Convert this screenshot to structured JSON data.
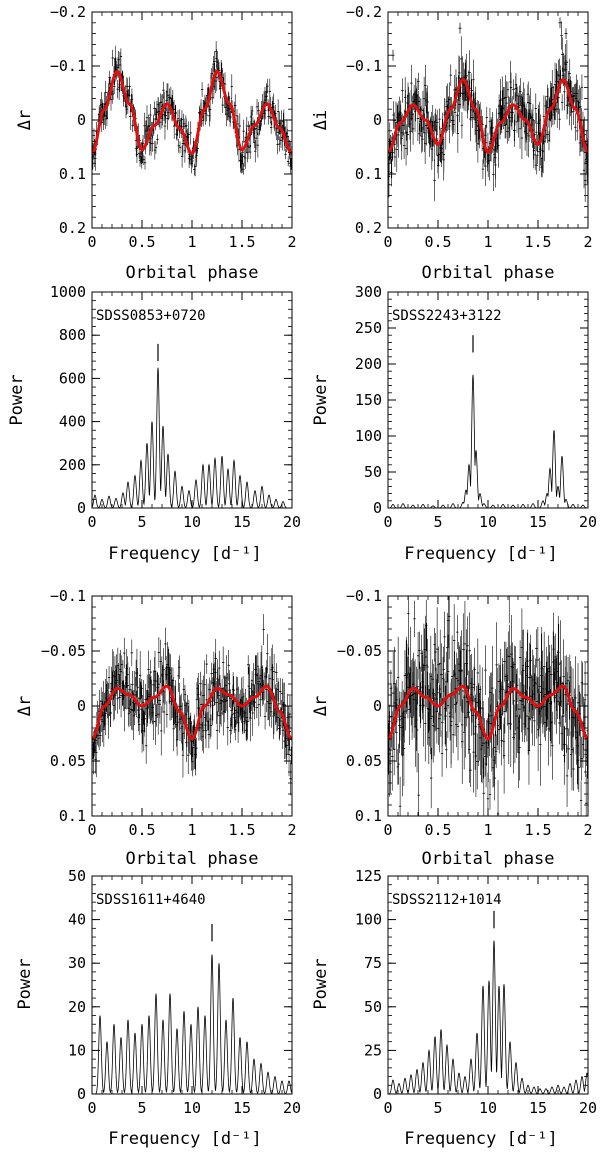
{
  "figure": {
    "background": "#ffffff",
    "model_color": "#e01010",
    "data_color": "#000000"
  },
  "chart_data": [
    {
      "id": "lc-sdss0853",
      "type": "scatter",
      "title": "",
      "xlabel": "Orbital phase",
      "ylabel": "Δr",
      "xlim": [
        0,
        2
      ],
      "ylim": [
        0.2,
        -0.2
      ],
      "y_inverted": true,
      "x_ticks": [
        0,
        0.5,
        1,
        1.5,
        2
      ],
      "x_tick_labels": [
        "0",
        "0.5",
        "1",
        "1.5",
        "2"
      ],
      "y_ticks": [
        -0.2,
        -0.1,
        0,
        0.1,
        0.2
      ],
      "y_tick_labels": [
        "−0.2",
        "−0.1",
        "0",
        "0.1",
        "0.2"
      ],
      "model": {
        "x": [
          0,
          0.125,
          0.25,
          0.375,
          0.5,
          0.625,
          0.75,
          0.875,
          1.0,
          1.125,
          1.25,
          1.375,
          1.5,
          1.625,
          1.75,
          1.875,
          2.0
        ],
        "y": [
          0.062,
          -0.02,
          -0.09,
          -0.03,
          0.055,
          0.01,
          -0.03,
          0.015,
          0.062,
          -0.02,
          -0.09,
          -0.03,
          0.055,
          0.01,
          -0.03,
          0.015,
          0.062
        ]
      },
      "scatter_amplitude": 0.018,
      "legend": null
    },
    {
      "id": "lc-sdss2243",
      "type": "scatter",
      "title": "",
      "xlabel": "Orbital phase",
      "ylabel": "Δi",
      "xlim": [
        0,
        2
      ],
      "ylim": [
        0.2,
        -0.2
      ],
      "y_inverted": true,
      "x_ticks": [
        0,
        0.5,
        1,
        1.5,
        2
      ],
      "x_tick_labels": [
        "0",
        "0.5",
        "1",
        "1.5",
        "2"
      ],
      "y_ticks": [
        -0.2,
        -0.1,
        0,
        0.1,
        0.2
      ],
      "y_tick_labels": [
        "−0.2",
        "−0.1",
        "0",
        "0.1",
        "0.2"
      ],
      "model": {
        "x": [
          0,
          0.125,
          0.25,
          0.375,
          0.5,
          0.625,
          0.75,
          0.875,
          1.0,
          1.125,
          1.25,
          1.375,
          1.5,
          1.625,
          1.75,
          1.875,
          2.0
        ],
        "y": [
          0.06,
          0.005,
          -0.028,
          0.0,
          0.045,
          -0.02,
          -0.075,
          -0.02,
          0.06,
          0.005,
          -0.028,
          0.0,
          0.045,
          -0.02,
          -0.075,
          -0.02,
          0.06
        ]
      },
      "scatter_amplitude": 0.03,
      "outliers": [
        {
          "x": 0.72,
          "y": -0.17
        },
        {
          "x": 1.72,
          "y": -0.18
        },
        {
          "x": 1.78,
          "y": -0.16
        },
        {
          "x": 0.05,
          "y": -0.12
        }
      ],
      "legend": null
    },
    {
      "id": "ps-sdss0853",
      "type": "line",
      "title": "SDSS0853+0720",
      "xlabel": "Frequency [d⁻¹]",
      "ylabel": "Power",
      "xlim": [
        0,
        20
      ],
      "ylim": [
        0,
        1000
      ],
      "x_ticks": [
        0,
        5,
        10,
        15,
        20
      ],
      "x_tick_labels": [
        "0",
        "5",
        "10",
        "15",
        "20"
      ],
      "y_ticks": [
        0,
        200,
        400,
        600,
        800,
        1000
      ],
      "y_tick_labels": [
        "0",
        "200",
        "400",
        "600",
        "800",
        "1000"
      ],
      "peaks": [
        [
          0.3,
          60
        ],
        [
          1.0,
          40
        ],
        [
          1.7,
          55
        ],
        [
          2.4,
          45
        ],
        [
          3.1,
          70
        ],
        [
          3.6,
          120
        ],
        [
          4.3,
          150
        ],
        [
          4.9,
          220
        ],
        [
          5.5,
          300
        ],
        [
          6.0,
          400
        ],
        [
          6.6,
          650
        ],
        [
          7.1,
          380
        ],
        [
          7.6,
          250
        ],
        [
          8.3,
          170
        ],
        [
          9.0,
          100
        ],
        [
          9.7,
          80
        ],
        [
          10.4,
          130
        ],
        [
          11.1,
          200
        ],
        [
          11.7,
          200
        ],
        [
          12.3,
          230
        ],
        [
          13.0,
          240
        ],
        [
          13.6,
          180
        ],
        [
          14.2,
          220
        ],
        [
          14.8,
          150
        ],
        [
          15.5,
          120
        ],
        [
          16.3,
          80
        ],
        [
          17.0,
          100
        ],
        [
          17.7,
          60
        ],
        [
          18.4,
          40
        ],
        [
          19.1,
          30
        ]
      ],
      "marker": {
        "x": 6.6,
        "y": 720
      },
      "legend": null
    },
    {
      "id": "ps-sdss2243",
      "type": "line",
      "title": "SDSS2243+3122",
      "xlabel": "Frequency [d⁻¹]",
      "ylabel": "Power",
      "xlim": [
        0,
        20
      ],
      "ylim": [
        0,
        300
      ],
      "x_ticks": [
        0,
        5,
        10,
        15,
        20
      ],
      "x_tick_labels": [
        "0",
        "5",
        "10",
        "15",
        "20"
      ],
      "y_ticks": [
        0,
        50,
        100,
        150,
        200,
        250,
        300
      ],
      "y_tick_labels": [
        "0",
        "50",
        "100",
        "150",
        "200",
        "250",
        "300"
      ],
      "peaks": [
        [
          0.5,
          5
        ],
        [
          1.5,
          6
        ],
        [
          2.5,
          4
        ],
        [
          3.5,
          5
        ],
        [
          4.5,
          3
        ],
        [
          5.5,
          4
        ],
        [
          6.5,
          6
        ],
        [
          7.5,
          8
        ],
        [
          7.8,
          25
        ],
        [
          8.1,
          60
        ],
        [
          8.5,
          185
        ],
        [
          8.8,
          80
        ],
        [
          9.2,
          20
        ],
        [
          9.6,
          6
        ],
        [
          10.5,
          4
        ],
        [
          11.5,
          5
        ],
        [
          12.5,
          4
        ],
        [
          13.5,
          5
        ],
        [
          14.5,
          6
        ],
        [
          15.5,
          10
        ],
        [
          15.9,
          20
        ],
        [
          16.2,
          55
        ],
        [
          16.6,
          108
        ],
        [
          17.0,
          30
        ],
        [
          17.4,
          72
        ],
        [
          17.8,
          12
        ],
        [
          18.5,
          5
        ],
        [
          19.5,
          4
        ]
      ],
      "marker": {
        "x": 8.5,
        "y": 228
      },
      "legend": null
    },
    {
      "id": "lc-sdss1611",
      "type": "scatter",
      "title": "",
      "xlabel": "Orbital phase",
      "ylabel": "Δr",
      "xlim": [
        0,
        2
      ],
      "ylim": [
        0.1,
        -0.1
      ],
      "y_inverted": true,
      "x_ticks": [
        0,
        0.5,
        1,
        1.5,
        2
      ],
      "x_tick_labels": [
        "0",
        "0.5",
        "1",
        "1.5",
        "2"
      ],
      "y_ticks": [
        -0.1,
        -0.05,
        0,
        0.05,
        0.1
      ],
      "y_tick_labels": [
        "−0.1",
        "−0.05",
        "0",
        "0.05",
        "0.1"
      ],
      "model": {
        "x": [
          0,
          0.125,
          0.25,
          0.375,
          0.5,
          0.625,
          0.75,
          0.875,
          1.0,
          1.125,
          1.25,
          1.375,
          1.5,
          1.625,
          1.75,
          1.875,
          2.0
        ],
        "y": [
          0.03,
          0.0,
          -0.016,
          -0.01,
          0.0,
          -0.008,
          -0.018,
          0.005,
          0.03,
          0.0,
          -0.016,
          -0.01,
          0.0,
          -0.008,
          -0.018,
          0.005,
          0.03
        ]
      },
      "scatter_amplitude": 0.016,
      "legend": null
    },
    {
      "id": "lc-sdss2112",
      "type": "scatter",
      "title": "",
      "xlabel": "Orbital phase",
      "ylabel": "Δr",
      "xlim": [
        0,
        2
      ],
      "ylim": [
        0.1,
        -0.1
      ],
      "y_inverted": true,
      "x_ticks": [
        0,
        0.5,
        1,
        1.5,
        2
      ],
      "x_tick_labels": [
        "0",
        "0.5",
        "1",
        "1.5",
        "2"
      ],
      "y_ticks": [
        -0.1,
        -0.05,
        0,
        0.05,
        0.1
      ],
      "y_tick_labels": [
        "−0.1",
        "−0.05",
        "0",
        "0.05",
        "0.1"
      ],
      "model": {
        "x": [
          0,
          0.125,
          0.25,
          0.375,
          0.5,
          0.625,
          0.75,
          0.875,
          1.0,
          1.125,
          1.25,
          1.375,
          1.5,
          1.625,
          1.75,
          1.875,
          2.0
        ],
        "y": [
          0.03,
          0.0,
          -0.016,
          -0.008,
          0.0,
          -0.01,
          -0.018,
          0.005,
          0.03,
          0.0,
          -0.016,
          -0.008,
          0.0,
          -0.01,
          -0.018,
          0.005,
          0.03
        ]
      },
      "scatter_amplitude": 0.028,
      "legend": null
    },
    {
      "id": "ps-sdss1611",
      "type": "line",
      "title": "SDSS1611+4640",
      "xlabel": "Frequency [d⁻¹]",
      "ylabel": "Power",
      "xlim": [
        0,
        20
      ],
      "ylim": [
        0,
        50
      ],
      "x_ticks": [
        0,
        5,
        10,
        15,
        20
      ],
      "x_tick_labels": [
        "0",
        "5",
        "10",
        "15",
        "20"
      ],
      "y_ticks": [
        0,
        10,
        20,
        30,
        40,
        50
      ],
      "y_tick_labels": [
        "0",
        "10",
        "20",
        "30",
        "40",
        "50"
      ],
      "peaks": [
        [
          0.8,
          18
        ],
        [
          1.5,
          12
        ],
        [
          2.2,
          16
        ],
        [
          2.9,
          13
        ],
        [
          3.6,
          17
        ],
        [
          4.3,
          14
        ],
        [
          5.0,
          16
        ],
        [
          5.7,
          18
        ],
        [
          6.4,
          23
        ],
        [
          7.1,
          17
        ],
        [
          7.8,
          23
        ],
        [
          8.5,
          15
        ],
        [
          9.2,
          19
        ],
        [
          9.9,
          16
        ],
        [
          10.6,
          20
        ],
        [
          11.3,
          18
        ],
        [
          12.0,
          32
        ],
        [
          12.7,
          30
        ],
        [
          13.4,
          17
        ],
        [
          14.1,
          22
        ],
        [
          14.8,
          13
        ],
        [
          15.5,
          12
        ],
        [
          16.2,
          8
        ],
        [
          16.9,
          7
        ],
        [
          17.6,
          5
        ],
        [
          18.3,
          4
        ],
        [
          19.0,
          3
        ],
        [
          19.7,
          3
        ]
      ],
      "marker": {
        "x": 12.0,
        "y": 37
      },
      "legend": null
    },
    {
      "id": "ps-sdss2112",
      "type": "line",
      "title": "SDSS2112+1014",
      "xlabel": "Frequency [d⁻¹]",
      "ylabel": "Power",
      "xlim": [
        0,
        20
      ],
      "ylim": [
        0,
        125
      ],
      "x_ticks": [
        0,
        5,
        10,
        15,
        20
      ],
      "x_tick_labels": [
        "0",
        "5",
        "10",
        "15",
        "20"
      ],
      "y_ticks": [
        0,
        25,
        50,
        75,
        100,
        125
      ],
      "y_tick_labels": [
        "0",
        "25",
        "50",
        "75",
        "100",
        "125"
      ],
      "peaks": [
        [
          0.5,
          8
        ],
        [
          1.1,
          6
        ],
        [
          1.7,
          9
        ],
        [
          2.3,
          11
        ],
        [
          2.9,
          14
        ],
        [
          3.5,
          18
        ],
        [
          4.1,
          25
        ],
        [
          4.7,
          33
        ],
        [
          5.3,
          37
        ],
        [
          5.9,
          28
        ],
        [
          6.5,
          20
        ],
        [
          7.1,
          12
        ],
        [
          7.7,
          10
        ],
        [
          8.3,
          20
        ],
        [
          8.9,
          35
        ],
        [
          9.5,
          62
        ],
        [
          10.1,
          65
        ],
        [
          10.6,
          88
        ],
        [
          11.1,
          62
        ],
        [
          11.6,
          63
        ],
        [
          12.2,
          30
        ],
        [
          12.8,
          18
        ],
        [
          13.4,
          9
        ],
        [
          14.0,
          5
        ],
        [
          14.6,
          4
        ],
        [
          15.2,
          3
        ],
        [
          15.8,
          3
        ],
        [
          16.4,
          4
        ],
        [
          17.0,
          5
        ],
        [
          17.6,
          4
        ],
        [
          18.2,
          6
        ],
        [
          18.8,
          8
        ],
        [
          19.4,
          10
        ],
        [
          19.9,
          12
        ]
      ],
      "marker": {
        "x": 10.6,
        "y": 100
      },
      "legend": null
    }
  ]
}
